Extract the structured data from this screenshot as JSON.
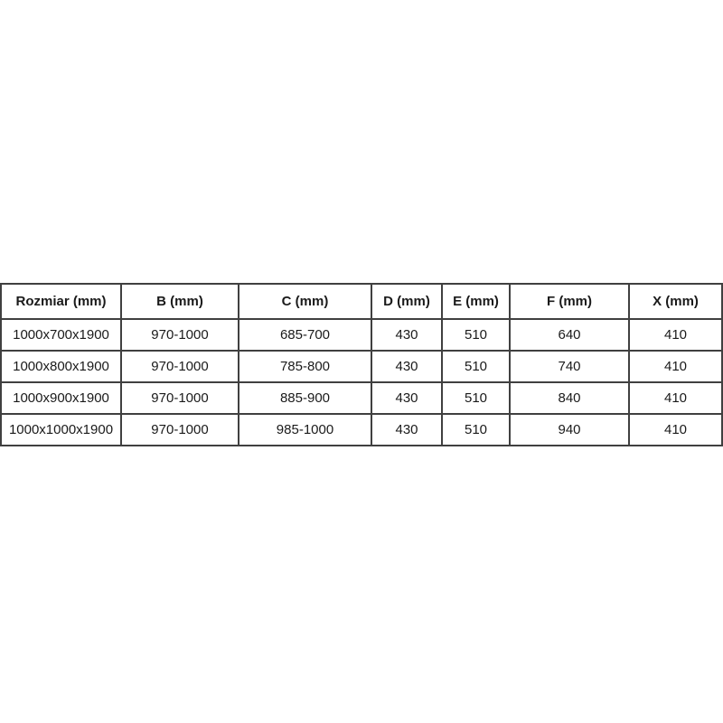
{
  "page": {
    "background": "#ffffff"
  },
  "chart_data": {
    "type": "table",
    "title": "",
    "columns": [
      "Rozmiar (mm)",
      "B (mm)",
      "C (mm)",
      "D (mm)",
      "E (mm)",
      "F (mm)",
      "X (mm)"
    ],
    "rows": [
      [
        "1000x700x1900",
        "970-1000",
        "685-700",
        "430",
        "510",
        "640",
        "410"
      ],
      [
        "1000x800x1900",
        "970-1000",
        "785-800",
        "430",
        "510",
        "740",
        "410"
      ],
      [
        "1000x900x1900",
        "970-1000",
        "885-900",
        "430",
        "510",
        "840",
        "410"
      ],
      [
        "1000x1000x1900",
        "970-1000",
        "985-1000",
        "430",
        "510",
        "940",
        "410"
      ]
    ],
    "colors": {
      "border": "#404040",
      "text": "#1a1a1a",
      "header_text": "#1a1a1a",
      "cell_background": "#ffffff"
    },
    "layout_hints": {
      "grid": "all-borders",
      "header_style": "bold",
      "alignment": "center"
    }
  }
}
